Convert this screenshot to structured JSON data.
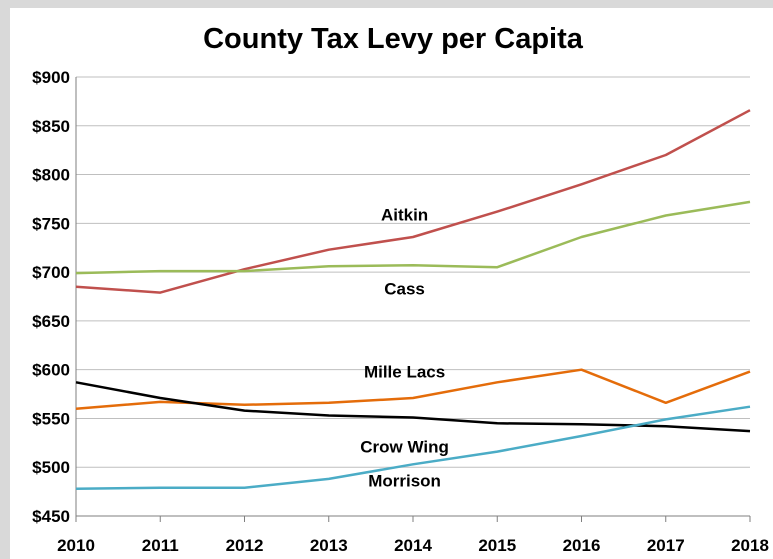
{
  "chart_data": {
    "type": "line",
    "title": "County Tax Levy per Capita",
    "xlabel": "",
    "ylabel": "",
    "categories": [
      "2010",
      "2011",
      "2012",
      "2013",
      "2014",
      "2015",
      "2016",
      "2017",
      "2018"
    ],
    "y_ticks": [
      "$450",
      "$500",
      "$550",
      "$600",
      "$650",
      "$700",
      "$750",
      "$800",
      "$850",
      "$900"
    ],
    "ylim": [
      450,
      900
    ],
    "grid": true,
    "legend": "none (inline series labels)",
    "series": [
      {
        "name": "Aitkin",
        "color": "#c0504d",
        "values": [
          685,
          679,
          703,
          723,
          736,
          762,
          790,
          820,
          866
        ]
      },
      {
        "name": "Cass",
        "color": "#9bbb59",
        "values": [
          699,
          701,
          701,
          706,
          707,
          705,
          736,
          758,
          772
        ]
      },
      {
        "name": "Mille Lacs",
        "color": "#e46c0a",
        "values": [
          560,
          567,
          564,
          566,
          571,
          587,
          600,
          566,
          598
        ]
      },
      {
        "name": "Crow Wing",
        "color": "#000000",
        "values": [
          587,
          571,
          558,
          553,
          551,
          545,
          544,
          542,
          537
        ]
      },
      {
        "name": "Morrison",
        "color": "#4bacc6",
        "values": [
          478,
          479,
          479,
          488,
          503,
          516,
          532,
          549,
          562
        ]
      }
    ]
  }
}
